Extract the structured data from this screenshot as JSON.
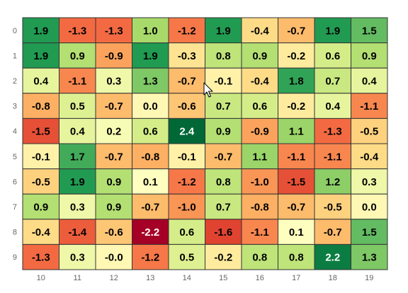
{
  "chart_data": {
    "type": "heatmap",
    "title": "",
    "xlabel": "",
    "ylabel": "",
    "x_categories": [
      "10",
      "11",
      "12",
      "13",
      "14",
      "15",
      "16",
      "17",
      "18",
      "19"
    ],
    "y_categories": [
      "0",
      "1",
      "2",
      "3",
      "4",
      "5",
      "6",
      "7",
      "8",
      "9"
    ],
    "values": [
      [
        "1.9",
        "-1.3",
        "-1.3",
        "1.0",
        "-1.2",
        "1.9",
        "-0.4",
        "-0.7",
        "1.9",
        "1.5"
      ],
      [
        "1.9",
        "0.9",
        "-0.9",
        "1.9",
        "-0.3",
        "0.8",
        "0.9",
        "-0.2",
        "0.6",
        "0.9"
      ],
      [
        "0.4",
        "-1.1",
        "0.3",
        "1.3",
        "-0.7",
        "-0.1",
        "-0.4",
        "1.8",
        "0.7",
        "0.4"
      ],
      [
        "-0.8",
        "0.5",
        "-0.7",
        "0.0",
        "-0.6",
        "0.7",
        "0.6",
        "-0.2",
        "0.4",
        "-1.1"
      ],
      [
        "-1.5",
        "0.4",
        "0.2",
        "0.6",
        "2.4",
        "0.9",
        "-0.9",
        "1.1",
        "-1.3",
        "-0.5"
      ],
      [
        "-0.1",
        "1.7",
        "-0.7",
        "-0.8",
        "-0.1",
        "-0.7",
        "1.1",
        "-1.1",
        "-1.1",
        "-0.4"
      ],
      [
        "-0.5",
        "1.9",
        "0.9",
        "0.1",
        "-1.2",
        "0.8",
        "-1.0",
        "-1.5",
        "1.2",
        "0.3"
      ],
      [
        "0.9",
        "0.3",
        "0.9",
        "-0.7",
        "-1.0",
        "0.7",
        "-0.8",
        "-0.7",
        "-0.5",
        "0.0"
      ],
      [
        "-0.4",
        "-1.4",
        "-0.6",
        "-2.2",
        "0.6",
        "-1.6",
        "-1.1",
        "0.1",
        "-0.7",
        "1.5"
      ],
      [
        "-1.3",
        "0.3",
        "-0.0",
        "-1.2",
        "0.5",
        "-0.2",
        "0.8",
        "0.8",
        "2.2",
        "1.3"
      ]
    ],
    "color_scale": {
      "name": "RdYlGn",
      "domain": [
        -2.2,
        2.4
      ],
      "stops": [
        "#a50026",
        "#d73027",
        "#f46d43",
        "#fdae61",
        "#fee08b",
        "#ffffbf",
        "#d9ef8b",
        "#a6d96a",
        "#66bd63",
        "#1a9850",
        "#006837"
      ]
    },
    "grid_color": "#333333",
    "tick_color": "#666666",
    "legend": "none"
  },
  "cursor": {
    "icon": "mouse-pointer-icon"
  }
}
